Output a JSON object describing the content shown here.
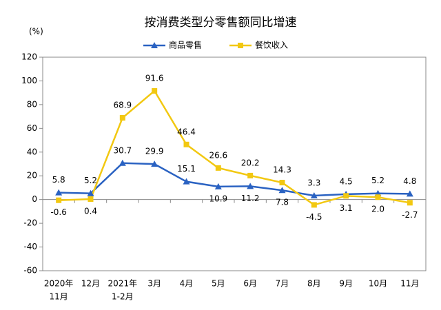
{
  "chart_data": {
    "type": "line",
    "title": "按消费类型分零售额同比增速",
    "y_unit": "(%)",
    "categories": [
      [
        "2020年",
        "11月"
      ],
      [
        "12月"
      ],
      [
        "2021年",
        "1-2月"
      ],
      [
        "3月"
      ],
      [
        "4月"
      ],
      [
        "5月"
      ],
      [
        "6月"
      ],
      [
        "7月"
      ],
      [
        "8月"
      ],
      [
        "9月"
      ],
      [
        "10月"
      ],
      [
        "11月"
      ]
    ],
    "series": [
      {
        "name": "商品零售",
        "color": "#2a62c2",
        "marker": "triangle",
        "values": [
          5.8,
          5.2,
          30.7,
          29.9,
          15.1,
          10.9,
          11.2,
          7.8,
          3.3,
          4.5,
          5.2,
          4.8
        ],
        "value_labels": [
          "5.8",
          "5.2",
          "30.7",
          "29.9",
          "15.1",
          "10.9",
          "11.2",
          "7.8",
          "3.3",
          "4.5",
          "5.2",
          "4.8"
        ]
      },
      {
        "name": "餐饮收入",
        "color": "#f2c811",
        "marker": "square",
        "values": [
          -0.6,
          0.4,
          68.9,
          91.6,
          46.4,
          26.6,
          20.2,
          14.3,
          -4.5,
          3.1,
          2.0,
          -2.7
        ],
        "value_labels": [
          "-0.6",
          "0.4",
          "68.9",
          "91.6",
          "46.4",
          "26.6",
          "20.2",
          "14.3",
          "-4.5",
          "3.1",
          "2.0",
          "-2.7"
        ]
      }
    ],
    "ylim": [
      -60,
      120
    ],
    "yticks": [
      -60,
      -40,
      -20,
      0,
      20,
      40,
      60,
      80,
      100,
      120
    ],
    "grid": false
  }
}
